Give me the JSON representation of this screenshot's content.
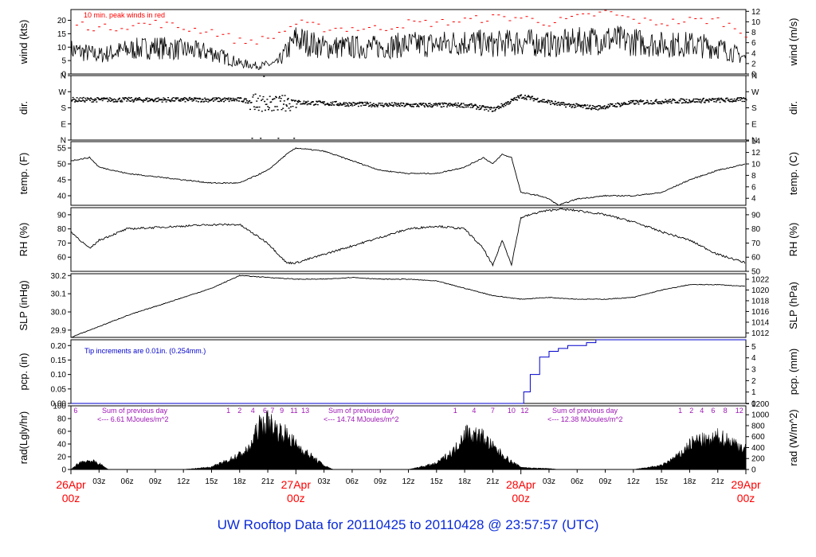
{
  "title": "UW Rooftop Data for 20110425  to  20110428 @ 23:57:57  (UTC)",
  "colors": {
    "title": "#0b2bd8",
    "day": "#ff0000",
    "peak": "#ff0000",
    "note": "#0000cc",
    "sum": "#9c17b4",
    "line": "#000000"
  },
  "x_axis": {
    "hour_ticks": [
      "03z",
      "06z",
      "09z",
      "12z",
      "15z",
      "18z",
      "21z",
      "03z",
      "06z",
      "09z",
      "12z",
      "15z",
      "18z",
      "21z",
      "03z",
      "06z",
      "09z",
      "12z",
      "15z",
      "18z",
      "21z"
    ],
    "day_labels": [
      {
        "day": "26Apr",
        "time": "00z"
      },
      {
        "day": "27Apr",
        "time": "00z"
      },
      {
        "day": "28Apr",
        "time": "00z"
      },
      {
        "day": "29Apr",
        "time": "00z"
      }
    ]
  },
  "panels": {
    "wind": {
      "ylabel": "wind (kts)",
      "ylabel_right": "wind (m/s)",
      "left_ticks": [
        "0",
        "5",
        "10",
        "15",
        "20"
      ],
      "right_ticks": [
        "0",
        "2",
        "4",
        "6",
        "8",
        "10",
        "12"
      ],
      "note": "10 min. peak winds in red"
    },
    "dir": {
      "ylabel": "dir.",
      "ylabel_right": "dir.",
      "left_ticks": [
        "N",
        "E",
        "S",
        "W",
        "N"
      ],
      "right_ticks": [
        "N",
        "E",
        "S",
        "W",
        "N"
      ]
    },
    "temp": {
      "ylabel": "temp. (F)",
      "ylabel_right": "temp. (C)",
      "left_ticks": [
        "40",
        "45",
        "50",
        "55"
      ],
      "right_ticks": [
        "4",
        "6",
        "8",
        "10",
        "12",
        "14"
      ]
    },
    "rh": {
      "ylabel": "RH (%)",
      "ylabel_right": "RH (%)",
      "left_ticks": [
        "60",
        "70",
        "80",
        "90"
      ],
      "right_ticks": [
        "50",
        "60",
        "70",
        "80",
        "90"
      ]
    },
    "slp": {
      "ylabel": "SLP (inHg)",
      "ylabel_right": "SLP (hPa)",
      "left_ticks": [
        "29.9",
        "30.0",
        "30.1",
        "30.2"
      ],
      "right_ticks": [
        "1012",
        "1014",
        "1016",
        "1018",
        "1020",
        "1022"
      ]
    },
    "pcp": {
      "ylabel": "pcp. (in)",
      "ylabel_right": "pcp. (mm)",
      "left_ticks": [
        "0.00",
        "0.05",
        "0.10",
        "0.15",
        "0.20"
      ],
      "right_ticks": [
        "0",
        "1",
        "2",
        "3",
        "4",
        "5"
      ],
      "note": "Tip increments are 0.01in. (0.254mm.)"
    },
    "rad": {
      "ylabel": "rad(Lgly/hr)",
      "ylabel_right": "rad (W/m^2)",
      "left_ticks": [
        "0",
        "20",
        "40",
        "60",
        "80",
        "100"
      ],
      "right_ticks": [
        "0",
        "200",
        "400",
        "600",
        "800",
        "1000",
        "1200"
      ],
      "sums": [
        {
          "head": "Sum of previous day",
          "body": "<--- 6.61 MJoules/m^2"
        },
        {
          "head": "Sum of previous day",
          "body": "<--- 14.74 MJoules/m^2"
        },
        {
          "head": "Sum of previous day",
          "body": "<--- 12.38 MJoules/m^2"
        }
      ],
      "hour_marks": [
        "6",
        "1",
        "2",
        "4",
        "6",
        "7",
        "9",
        "11",
        "13",
        "1",
        "4",
        "7",
        "10",
        "12",
        "1",
        "2",
        "4",
        "6",
        "8",
        "12"
      ]
    }
  },
  "chart_data": {
    "type": "line",
    "x_unit": "hours since 26Apr 00z",
    "x_range": [
      0,
      72
    ],
    "series": [
      {
        "name": "wind (kts)",
        "ylim": [
          0,
          24
        ],
        "x": [
          0,
          3,
          6,
          9,
          12,
          15,
          18,
          20,
          22,
          24,
          27,
          30,
          33,
          36,
          39,
          42,
          45,
          48,
          51,
          54,
          57,
          60,
          63,
          66,
          69,
          72
        ],
        "values": [
          9,
          7,
          9,
          10,
          9,
          8,
          4,
          3,
          4,
          13,
          10,
          10,
          10,
          11,
          11,
          12,
          11,
          12,
          11,
          12,
          13,
          12,
          11,
          11,
          10,
          6
        ]
      },
      {
        "name": "10 min. peak winds",
        "ylim": [
          0,
          24
        ],
        "x": [
          0,
          3,
          6,
          9,
          12,
          15,
          18,
          21,
          24,
          27,
          30,
          33,
          36,
          39,
          42,
          45,
          48,
          51,
          54,
          57,
          60,
          63,
          66,
          69,
          72
        ],
        "values": [
          19,
          17,
          18,
          19,
          17,
          16,
          12,
          13,
          19,
          17,
          17,
          17,
          19,
          19,
          20,
          21,
          21,
          19,
          21,
          23,
          20,
          19,
          20,
          20,
          15
        ]
      },
      {
        "name": "dir.",
        "ylim": [
          0,
          360
        ],
        "x": [
          0,
          6,
          12,
          18,
          21,
          24,
          30,
          36,
          42,
          45,
          48,
          52,
          56,
          60,
          66,
          72
        ],
        "values": [
          225,
          225,
          225,
          225,
          200,
          210,
          200,
          195,
          195,
          170,
          245,
          200,
          180,
          210,
          220,
          225
        ]
      },
      {
        "name": "temp. (F)",
        "ylim": [
          37,
          57
        ],
        "x": [
          0,
          2,
          3,
          6,
          9,
          12,
          15,
          18,
          21,
          23,
          24,
          27,
          30,
          33,
          36,
          39,
          42,
          44,
          45,
          46,
          47,
          48,
          50,
          51,
          52,
          54,
          57,
          60,
          63,
          66,
          69,
          72
        ],
        "values": [
          51,
          52,
          49,
          47,
          46,
          45,
          44,
          44,
          48,
          53,
          55,
          54,
          51,
          48,
          47,
          47,
          49,
          52,
          50,
          53,
          52,
          41,
          40,
          39,
          37,
          39,
          40,
          40,
          41,
          45,
          48,
          50
        ]
      },
      {
        "name": "RH (%)",
        "ylim": [
          50,
          95
        ],
        "x": [
          0,
          2,
          3,
          6,
          9,
          12,
          15,
          18,
          21,
          23,
          24,
          27,
          30,
          33,
          36,
          39,
          42,
          44,
          45,
          46,
          47,
          48,
          50,
          51,
          52,
          54,
          57,
          60,
          63,
          66,
          69,
          72
        ],
        "values": [
          78,
          66,
          72,
          80,
          81,
          82,
          83,
          83,
          70,
          56,
          56,
          62,
          68,
          74,
          80,
          82,
          80,
          66,
          54,
          72,
          55,
          88,
          92,
          93,
          94,
          93,
          90,
          85,
          78,
          72,
          62,
          56
        ]
      },
      {
        "name": "SLP (inHg)",
        "ylim": [
          29.86,
          30.21
        ],
        "x": [
          0,
          3,
          6,
          9,
          12,
          15,
          18,
          21,
          24,
          27,
          30,
          33,
          36,
          39,
          42,
          45,
          48,
          51,
          54,
          57,
          60,
          63,
          66,
          69,
          72
        ],
        "values": [
          29.86,
          29.92,
          29.98,
          30.03,
          30.08,
          30.13,
          30.2,
          30.19,
          30.18,
          30.18,
          30.19,
          30.18,
          30.18,
          30.17,
          30.13,
          30.09,
          30.07,
          30.08,
          30.07,
          30.07,
          30.08,
          30.12,
          30.15,
          30.15,
          30.14
        ]
      },
      {
        "name": "pcp. (in)",
        "ylim": [
          0,
          0.22
        ],
        "x": [
          0,
          47.5,
          48.3,
          49,
          50,
          51,
          52,
          53,
          54,
          55,
          56,
          72
        ],
        "values": [
          0,
          0,
          0.04,
          0.1,
          0.16,
          0.18,
          0.19,
          0.2,
          0.2,
          0.21,
          0.22,
          0.22
        ]
      },
      {
        "name": "rad(Lgly/hr)",
        "ylim": [
          0,
          100
        ],
        "x": [
          0,
          1,
          2,
          3,
          4,
          12,
          15,
          17,
          19,
          20,
          21,
          22,
          23,
          24,
          25,
          27,
          28,
          36,
          39,
          41,
          42,
          43,
          44,
          45,
          46,
          47,
          48,
          49,
          51,
          52,
          60,
          63,
          65,
          66,
          67,
          68,
          69,
          70,
          71,
          72
        ],
        "values": [
          0,
          15,
          18,
          12,
          0,
          0,
          5,
          20,
          40,
          85,
          95,
          80,
          70,
          50,
          35,
          8,
          0,
          0,
          12,
          40,
          75,
          70,
          65,
          45,
          30,
          15,
          5,
          3,
          2,
          0,
          0,
          8,
          30,
          50,
          60,
          55,
          65,
          60,
          50,
          40
        ]
      }
    ]
  }
}
